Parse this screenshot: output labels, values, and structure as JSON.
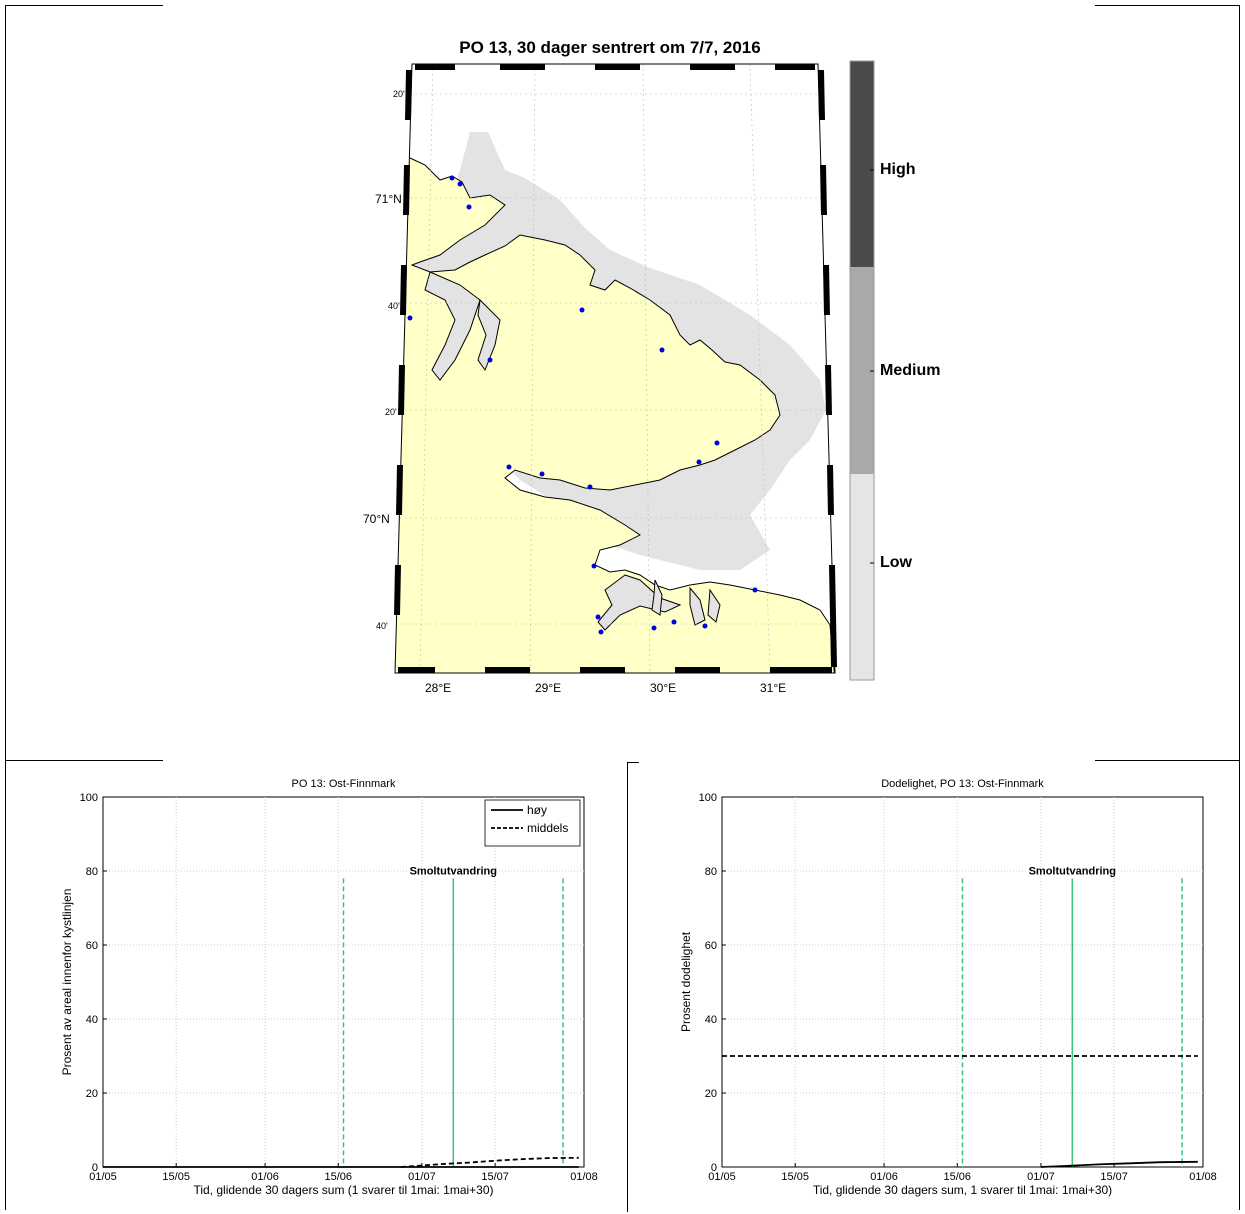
{
  "map": {
    "title": "PO 13, 30 dager sentrert om 7/7, 2016",
    "lat_labels": [
      {
        "text": "20'"
      },
      {
        "text": "71°N"
      },
      {
        "text": "40'"
      },
      {
        "text": "20'"
      },
      {
        "text": "70°N"
      },
      {
        "text": "40'"
      }
    ],
    "lon_labels": [
      "28°E",
      "29°E",
      "30°E",
      "31°E"
    ],
    "colorbar": {
      "levels": [
        {
          "label": "High",
          "color": "#4a4a4a"
        },
        {
          "label": "Medium",
          "color": "#a9a9a9"
        },
        {
          "label": "Low",
          "color": "#e5e5e5"
        }
      ]
    },
    "colors": {
      "land": "#ffffc8",
      "sea_affected": "#e3e3e3",
      "sites": "#0000e0"
    }
  },
  "chart_data": [
    {
      "type": "line",
      "title": "PO 13: Ost-Finnmark",
      "xlabel": "Tid, glidende 30 dagers sum (1 svarer til 1mai: 1mai+30)",
      "ylabel": "Prosent av areal innenfor kystlinjen",
      "xticks": [
        "01/05",
        "15/05",
        "01/06",
        "15/06",
        "01/07",
        "15/07",
        "01/08"
      ],
      "yticks": [
        "0",
        "20",
        "40",
        "60",
        "80",
        "100"
      ],
      "ylim": [
        0,
        100
      ],
      "xlim_days": [
        0,
        92
      ],
      "grid": true,
      "legend_position": "top-right",
      "series": [
        {
          "name": "høy",
          "style": "solid",
          "color": "#000000",
          "points": [
            [
              0,
              0
            ],
            [
              60,
              0
            ],
            [
              91,
              0
            ]
          ]
        },
        {
          "name": "middels",
          "style": "dashed",
          "color": "#000000",
          "points": [
            [
              57,
              0
            ],
            [
              60,
              0.3
            ],
            [
              65,
              0.8
            ],
            [
              70,
              1.2
            ],
            [
              75,
              1.7
            ],
            [
              80,
              2.1
            ],
            [
              85,
              2.4
            ],
            [
              91,
              2.5
            ]
          ]
        }
      ],
      "annotation": "Smoltutvandring",
      "vlines": [
        {
          "x_day": 46,
          "style": "dashed",
          "color": "#3cc47e",
          "top": 78
        },
        {
          "x_day": 67,
          "style": "solid",
          "color": "#3cc47e",
          "top": 78
        },
        {
          "x_day": 88,
          "style": "dashed",
          "color": "#3cc47e",
          "top": 78
        }
      ]
    },
    {
      "type": "line",
      "title": "Dodelighet, PO 13: Ost-Finnmark",
      "xlabel": "Tid, glidende 30 dagers sum, 1 svarer til 1mai: 1mai+30)",
      "ylabel": "Prosent dodelighet",
      "xticks": [
        "01/05",
        "15/05",
        "01/06",
        "15/06",
        "01/07",
        "15/07",
        "01/08"
      ],
      "yticks": [
        "0",
        "20",
        "40",
        "60",
        "80",
        "100"
      ],
      "ylim": [
        0,
        100
      ],
      "xlim_days": [
        0,
        92
      ],
      "grid": true,
      "series": [
        {
          "style": "solid",
          "color": "#000000",
          "points": [
            [
              61,
              0
            ],
            [
              66,
              0.3
            ],
            [
              72,
              0.7
            ],
            [
              78,
              1.0
            ],
            [
              84,
              1.3
            ],
            [
              91,
              1.4
            ]
          ]
        },
        {
          "style": "dashed",
          "color": "#000000",
          "points": [
            [
              0,
              30
            ],
            [
              91,
              30
            ]
          ]
        }
      ],
      "annotation": "Smoltutvandring",
      "vlines": [
        {
          "x_day": 46,
          "style": "dashed",
          "color": "#3cc47e",
          "top": 78
        },
        {
          "x_day": 67,
          "style": "solid",
          "color": "#3cc47e",
          "top": 78
        },
        {
          "x_day": 88,
          "style": "dashed",
          "color": "#3cc47e",
          "top": 78
        }
      ]
    }
  ]
}
